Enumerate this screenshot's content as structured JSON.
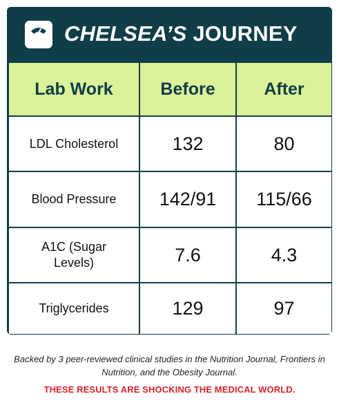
{
  "header": {
    "title_part1": "CHELSEA’S",
    "title_part2": " JOURNEY",
    "icon": "scale-icon"
  },
  "table": {
    "columns": [
      "Lab Work",
      "Before",
      "After"
    ],
    "rows": [
      {
        "label": "LDL Cholesterol",
        "before": "132",
        "after": "80"
      },
      {
        "label": "Blood Pressure",
        "before": "142/91",
        "after": "115/66"
      },
      {
        "label": "A1C (Sugar Levels)",
        "before": "7.6",
        "after": "4.3"
      },
      {
        "label": "Triglycerides",
        "before": "129",
        "after": "97"
      }
    ]
  },
  "footnote": "Backed by 3 peer-reviewed clinical studies in the Nutrition Journal, Frontiers in Nutrition, and the Obesity Journal.",
  "alert": "THESE RESULTS ARE SHOCKING THE MEDICAL WORLD.",
  "colors": {
    "header_bg": "#0f3d48",
    "column_header_bg": "#dcf29a",
    "alert_text": "#d5232a"
  }
}
